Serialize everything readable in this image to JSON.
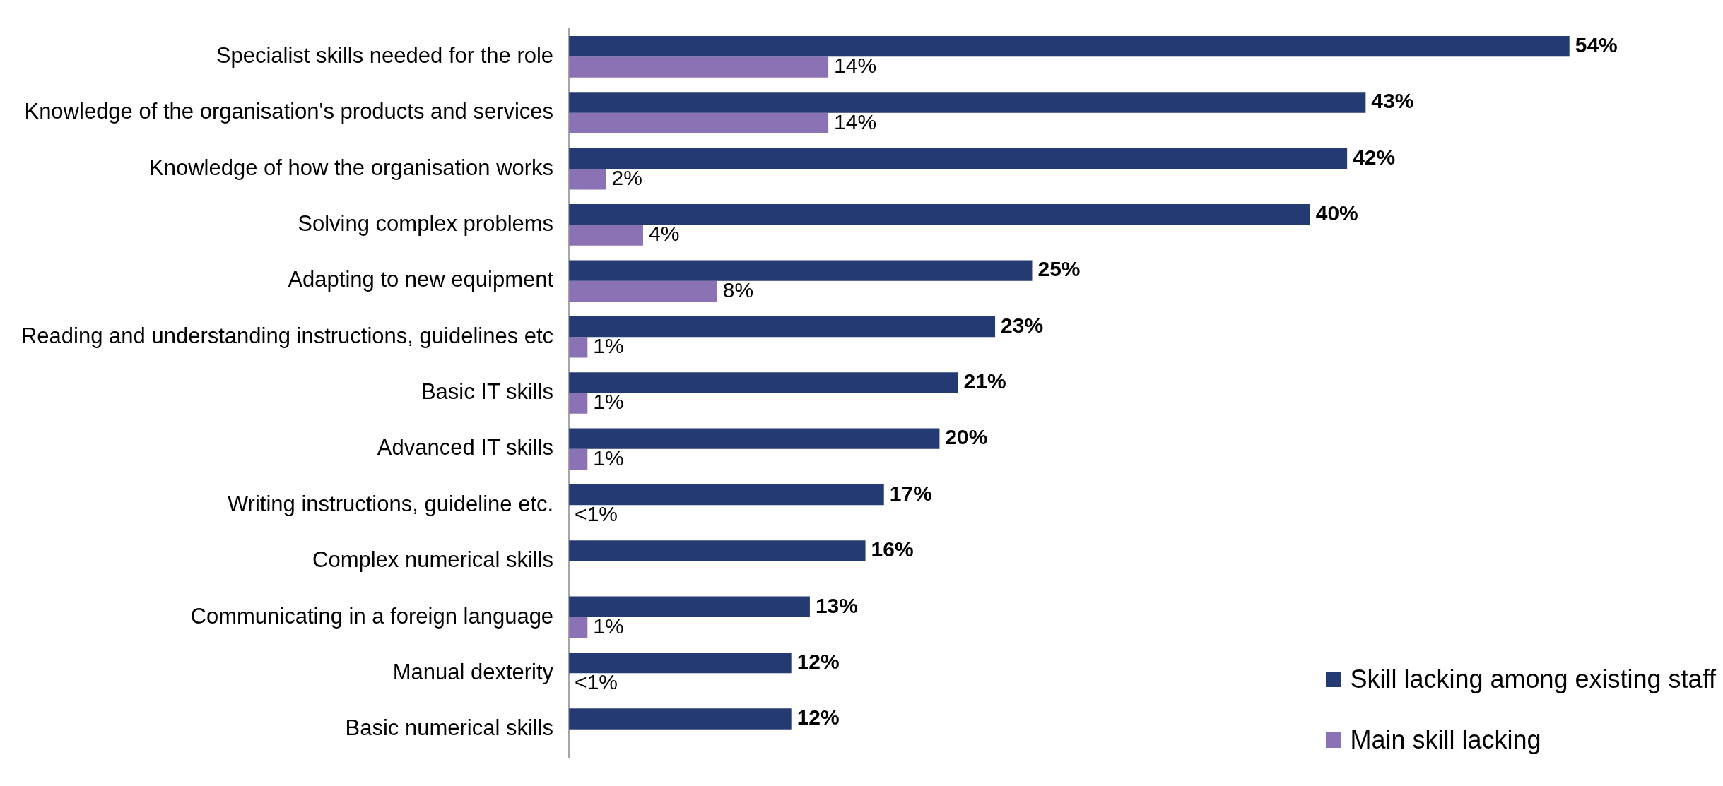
{
  "chart_data": {
    "type": "bar",
    "orientation": "horizontal",
    "legend": "bottom right",
    "grid": false,
    "categories": [
      "Specialist skills needed for the role",
      "Knowledge of the organisation's products and services",
      "Knowledge of how the organisation works",
      "Solving complex problems",
      "Adapting to new equipment",
      "Reading and understanding instructions, guidelines etc",
      "Basic IT skills",
      "Advanced IT skills",
      "Writing instructions, guideline etc.",
      "Complex numerical skills",
      "Communicating in a foreign language",
      "Manual dexterity",
      "Basic numerical skills"
    ],
    "series": [
      {
        "name": "Skill lacking among existing staff",
        "color": "#243a73",
        "values": [
          54,
          43,
          42,
          40,
          25,
          23,
          21,
          20,
          17,
          16,
          13,
          12,
          12
        ],
        "value_labels": [
          "54%",
          "43%",
          "42%",
          "40%",
          "25%",
          "23%",
          "21%",
          "20%",
          "17%",
          "16%",
          "13%",
          "12%",
          "12%"
        ]
      },
      {
        "name": "Main skill lacking",
        "color": "#8a72b5",
        "values": [
          14,
          14,
          2,
          4,
          8,
          1,
          1,
          1,
          0,
          null,
          1,
          0,
          null
        ],
        "value_labels": [
          "14%",
          "14%",
          "2%",
          "4%",
          "8%",
          "1%",
          "1%",
          "1%",
          "<1%",
          null,
          "1%",
          "<1%",
          null
        ]
      }
    ]
  }
}
